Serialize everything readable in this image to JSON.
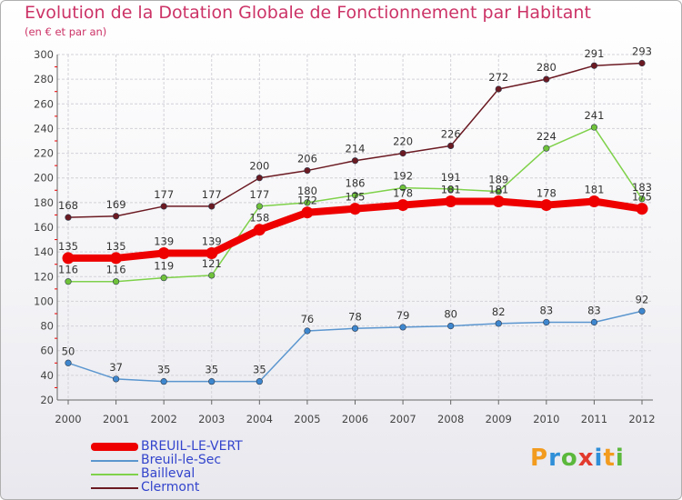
{
  "header": {
    "title": "Evolution de la Dotation Globale de Fonctionnement par Habitant",
    "subtitle": "(en € et par an)"
  },
  "logo": {
    "parts": [
      "P",
      "r",
      "o",
      "x",
      "i",
      "t",
      "i"
    ],
    "colors": [
      "#f29b1e",
      "#2f8fd8",
      "#5bb83c",
      "#e23a2e",
      "#2f8fd8",
      "#f29b1e",
      "#5bb83c"
    ]
  },
  "chart_data": {
    "type": "line",
    "title": "Evolution de la Dotation Globale de Fonctionnement par Habitant",
    "ylabel": "(en € et par an)",
    "xlabel": "",
    "ylim": [
      20,
      300
    ],
    "yticks": [
      20,
      40,
      60,
      80,
      100,
      120,
      140,
      160,
      180,
      200,
      220,
      240,
      260,
      280,
      300
    ],
    "grid": true,
    "legend_position": "bottom-left",
    "categories": [
      "2000",
      "2001",
      "2002",
      "2003",
      "2004",
      "2005",
      "2006",
      "2007",
      "2008",
      "2009",
      "2010",
      "2011",
      "2012"
    ],
    "series": [
      {
        "name": "Clermont",
        "color": "#6b1a22",
        "marker": "#6b1a22",
        "values": [
          168,
          169,
          177,
          177,
          200,
          206,
          214,
          220,
          226,
          272,
          280,
          291,
          293
        ]
      },
      {
        "name": "Bailleval",
        "color": "#7fd14a",
        "marker": "#6fc23a",
        "values": [
          116,
          116,
          119,
          121,
          177,
          180,
          186,
          192,
          191,
          189,
          224,
          241,
          183
        ]
      },
      {
        "name": "Breuil-le-Sec",
        "color": "#5b96cf",
        "marker": "#3e87cf",
        "values": [
          50,
          37,
          35,
          35,
          35,
          76,
          78,
          79,
          80,
          82,
          83,
          83,
          92
        ]
      },
      {
        "name": "BREUIL-LE-VERT",
        "color": "#ee0000",
        "marker": "#ee0000",
        "values": [
          135,
          135,
          139,
          139,
          158,
          172,
          175,
          178,
          181,
          181,
          178,
          181,
          175
        ]
      }
    ],
    "legend": [
      "BREUIL-LE-VERT",
      "Breuil-le-Sec",
      "Bailleval",
      "Clermont"
    ]
  }
}
